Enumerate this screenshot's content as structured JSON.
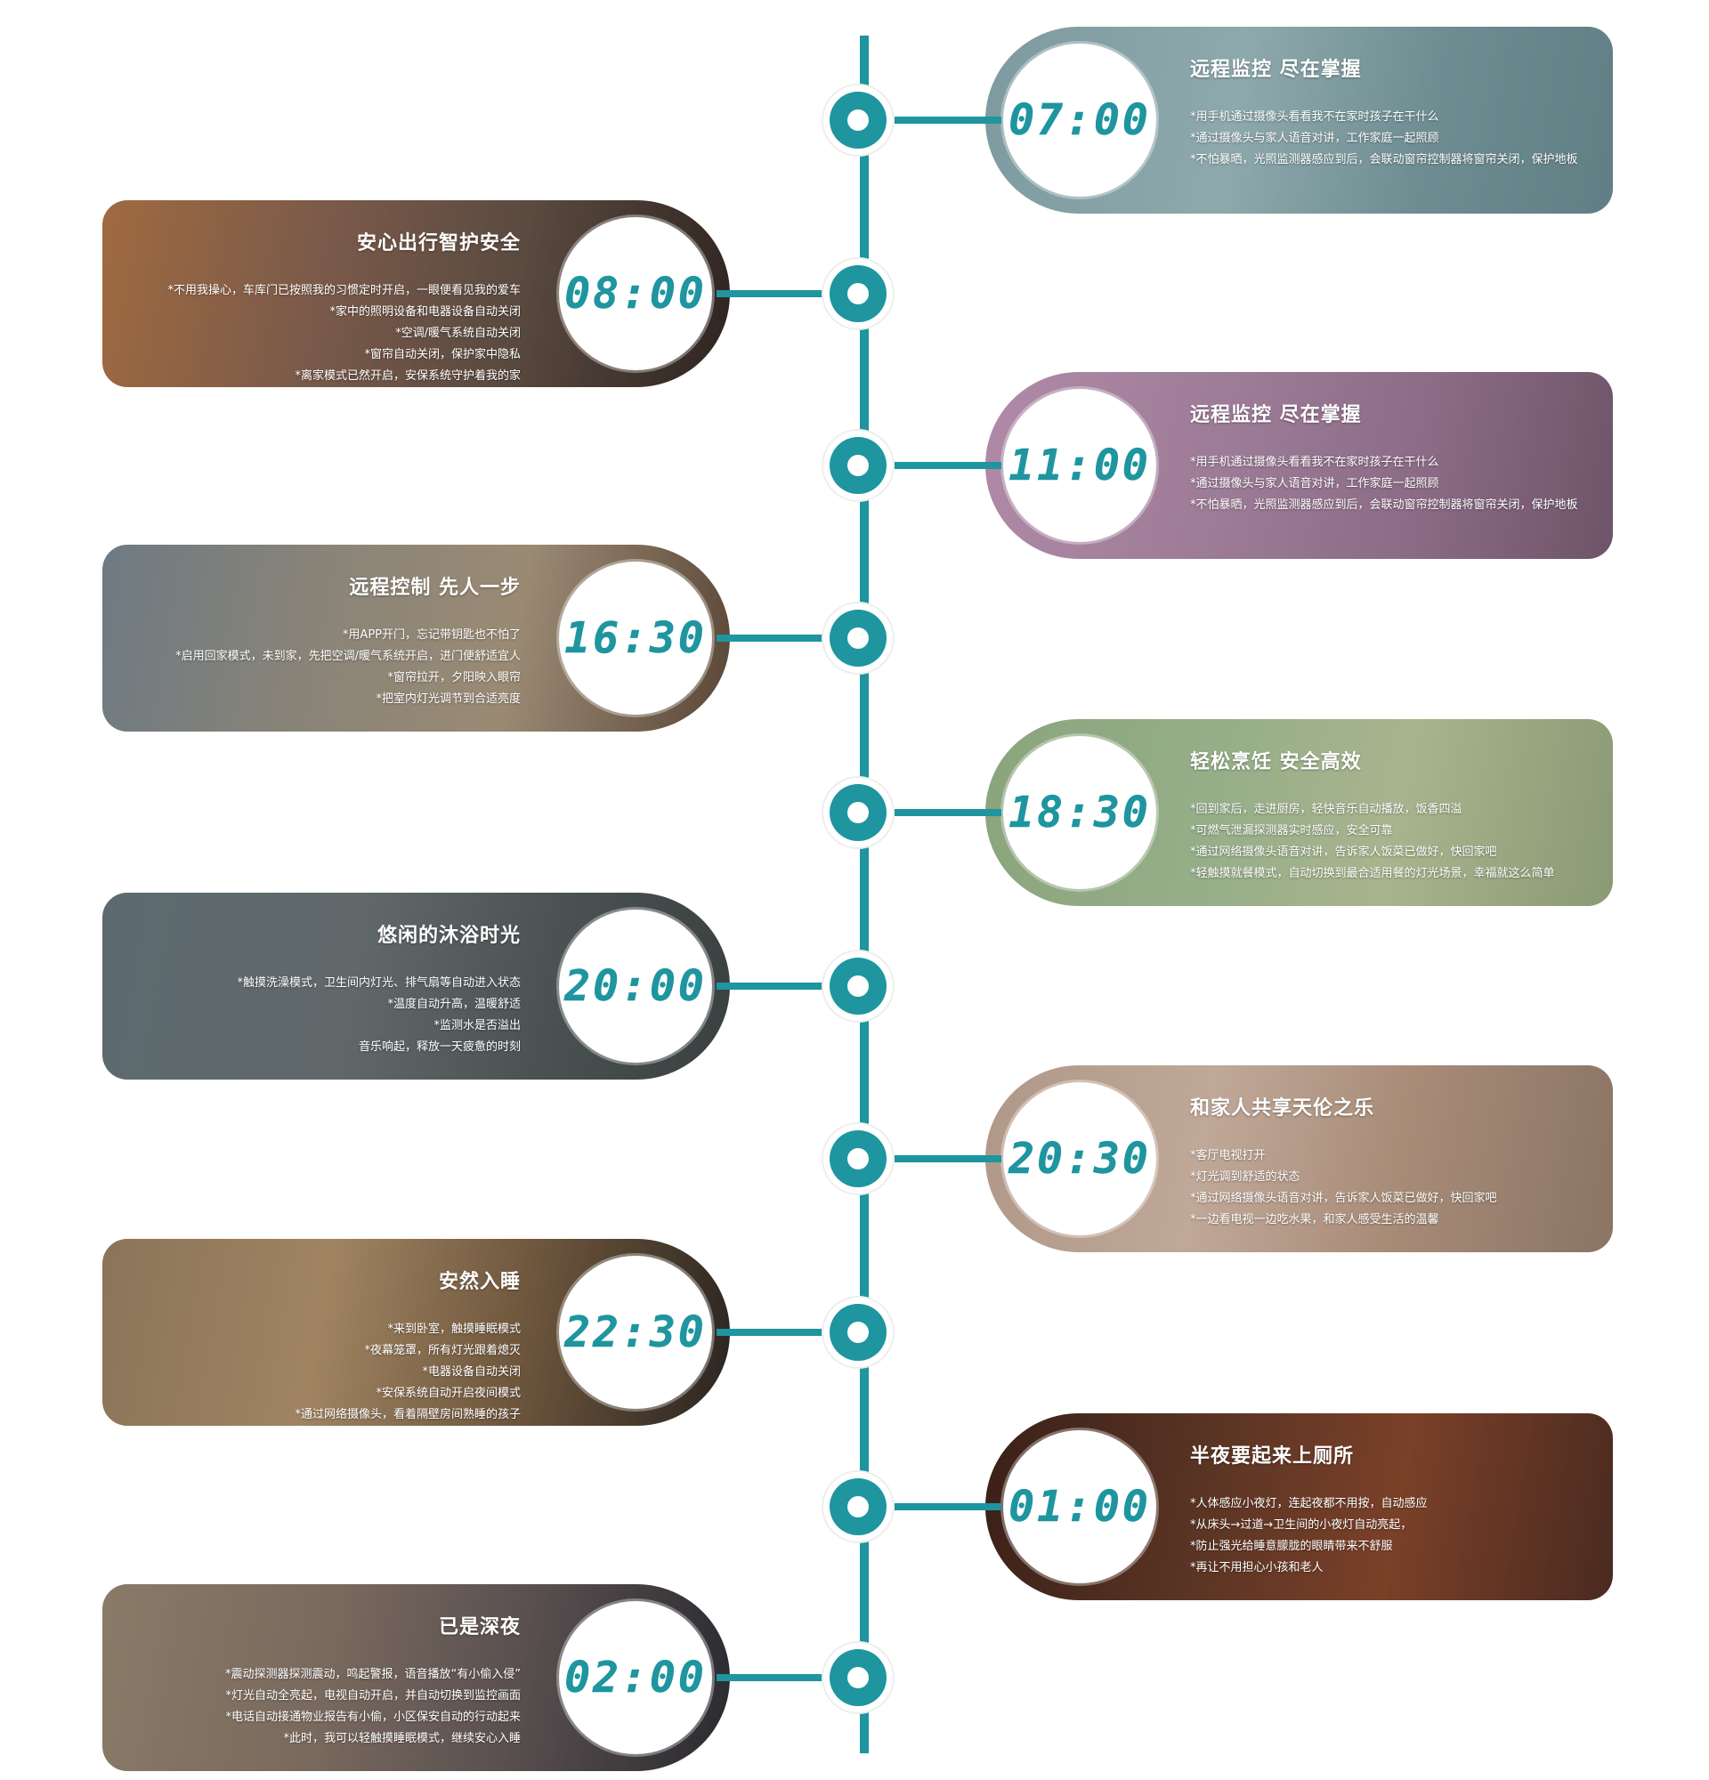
{
  "entries": [
    {
      "time": "07:00",
      "title": "远程监控  尽在掌握",
      "lines": [
        "*用手机通过摄像头看看我不在家时孩子在干什么",
        "*通过摄像头与家人语音对讲，工作家庭一起照顾",
        "*不怕暴晒，光照监测器感应到后，会联动窗帘控制器将窗帘关闭，保护地板"
      ]
    },
    {
      "time": "08:00",
      "title": "安心出行智护安全",
      "lines": [
        "*不用我操心，车库门已按照我的习惯定时开启，一眼便看见我的爱车",
        "*家中的照明设备和电器设备自动关闭",
        "*空调/暖气系统自动关闭",
        "*窗帘自动关闭，保护家中隐私",
        "*离家模式已然开启，安保系统守护着我的家"
      ]
    },
    {
      "time": "11:00",
      "title": "远程监控  尽在掌握",
      "lines": [
        "*用手机通过摄像头看看我不在家时孩子在干什么",
        "*通过摄像头与家人语音对讲，工作家庭一起照顾",
        "*不怕暴晒，光照监测器感应到后，会联动窗帘控制器将窗帘关闭，保护地板"
      ]
    },
    {
      "time": "16:30",
      "title": "远程控制  先人一步",
      "lines": [
        "*用APP开门，忘记带钥匙也不怕了",
        "*启用回家模式，未到家，先把空调/暖气系统开启，进门便舒适宜人",
        "*窗帘拉开，夕阳映入眼帘",
        "*把室内灯光调节到合适亮度"
      ]
    },
    {
      "time": "18:30",
      "title": "轻松烹饪  安全高效",
      "lines": [
        "*回到家后，走进厨房，轻快音乐自动播放，饭香四溢",
        "*可燃气泄漏探测器实时感应，安全可靠",
        "*通过网络摄像头语音对讲，告诉家人饭菜已做好，快回家吧",
        "*轻触摸就餐模式，自动切换到最合适用餐的灯光场景，幸福就这么简单"
      ]
    },
    {
      "time": "20:00",
      "title": "悠闲的沐浴时光",
      "lines": [
        "*触摸洗澡模式，卫生间内灯光、排气扇等自动进入状态",
        "*温度自动升高，温暖舒适",
        "*监测水是否溢出",
        "音乐响起，释放一天疲惫的时刻"
      ]
    },
    {
      "time": "20:30",
      "title": "和家人共享天伦之乐",
      "lines": [
        "*客厅电视打开",
        "*灯光调到舒适的状态",
        "*通过网络摄像头语音对讲，告诉家人饭菜已做好，快回家吧",
        "*一边看电视一边吃水果，和家人感受生活的温馨"
      ]
    },
    {
      "time": "22:30",
      "title": "安然入睡",
      "lines": [
        "*来到卧室，触摸睡眠模式",
        "*夜幕笼罩，所有灯光跟着熄灭",
        "*电器设备自动关闭",
        "*安保系统自动开启夜间模式",
        "*通过网络摄像头，看着隔壁房间熟睡的孩子"
      ]
    },
    {
      "time": "01:00",
      "title": "半夜要起来上厕所",
      "lines": [
        "*人体感应小夜灯，连起夜都不用按，自动感应",
        "*从床头→过道→卫生间的小夜灯自动亮起，",
        "*防止强光给睡意朦胧的眼睛带来不舒服",
        "*再让不用担心小孩和老人"
      ]
    },
    {
      "time": "02:00",
      "title": "已是深夜",
      "lines": [
        "*震动探测器探测震动，鸣起警报，语音播放“有小偷入侵”",
        "*灯光自动全亮起，电视自动开启，并自动切换到监控画面",
        "*电话自动接通物业报告有小偷，小区保安自动的行动起来",
        "*此时，我可以轻触摸睡眠模式，继续安心入睡"
      ]
    }
  ],
  "colors": {
    "accent": "#1e959f",
    "card_tints": [
      "#6f8f94",
      "#8a5a3a",
      "#8c6f8c",
      "#7a6a5a",
      "#7f9a74",
      "#4e5656",
      "#a08878",
      "#6e5a44",
      "#4a2a20",
      "#6a5a52"
    ]
  }
}
